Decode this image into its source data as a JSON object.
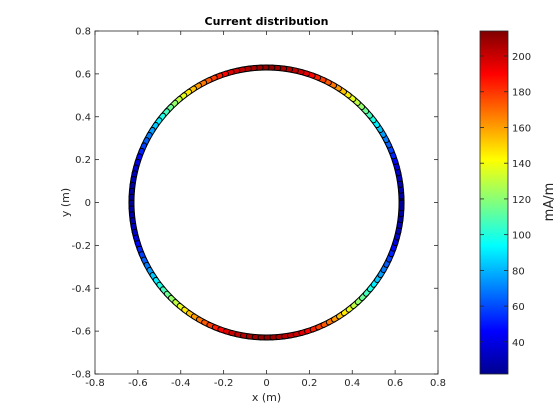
{
  "chart_data": {
    "type": "scatter",
    "title": "Current distribution",
    "xlabel": "x (m)",
    "ylabel": "y (m)",
    "xlim": [
      -0.8,
      0.8
    ],
    "ylim": [
      -0.8,
      0.8
    ],
    "xticks": [
      "-0.8",
      "-0.6",
      "-0.4",
      "-0.2",
      "0",
      "0.2",
      "0.4",
      "0.6",
      "0.8"
    ],
    "yticks": [
      "-0.8",
      "-0.6",
      "-0.4",
      "-0.2",
      "0",
      "0.2",
      "0.4",
      "0.6",
      "0.8"
    ],
    "grid": false,
    "colormap": "jet",
    "colorbar": {
      "label": "mA/m",
      "range": [
        22,
        214
      ],
      "ticks": [
        "40",
        "60",
        "80",
        "100",
        "120",
        "140",
        "160",
        "180",
        "200"
      ],
      "placement": "right"
    },
    "series": [
      {
        "shape": "circular loop",
        "center": [
          0,
          0
        ],
        "radius_m": 0.63,
        "current_vs_angle_deg": {
          "angle_deg": [
            0,
            15,
            30,
            45,
            60,
            75,
            90,
            105,
            120,
            135,
            150,
            165,
            180,
            195,
            210,
            225,
            240,
            255,
            270,
            285,
            300,
            315,
            330,
            345
          ],
          "current_mA_per_m": [
            25,
            38,
            72,
            118,
            165,
            198,
            212,
            198,
            165,
            118,
            72,
            38,
            25,
            38,
            72,
            118,
            165,
            198,
            212,
            198,
            165,
            118,
            72,
            38
          ]
        }
      }
    ]
  }
}
